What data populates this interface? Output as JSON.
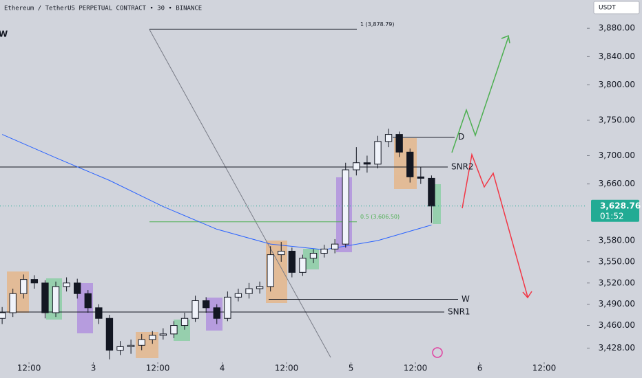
{
  "chart_data": {
    "type": "candlestick",
    "title": "Ethereum / TetherUS PERPETUAL CONTRACT • 30 • BINANCE",
    "currency": "USDT",
    "x": [
      -5,
      -3,
      -1,
      1,
      3,
      5,
      7,
      9,
      11,
      13,
      15,
      17,
      19,
      21,
      23,
      25,
      27,
      29,
      31,
      33,
      35,
      37,
      39,
      41,
      43,
      45,
      47,
      49,
      51,
      53,
      55,
      57,
      59,
      61,
      63,
      65,
      67,
      69,
      71,
      73,
      75
    ],
    "open": [
      3470,
      3478,
      3505,
      3525,
      3520,
      3478,
      3515,
      3520,
      3505,
      3485,
      3470,
      3425,
      3430,
      3432,
      3440,
      3446,
      3448,
      3460,
      3470,
      3495,
      3485,
      3470,
      3500,
      3505,
      3512,
      3515,
      3560,
      3565,
      3535,
      3555,
      3562,
      3568,
      3575,
      3680,
      3690,
      3688,
      3720,
      3730,
      3705,
      3670,
      3668
    ],
    "high": [
      3486,
      3512,
      3532,
      3531,
      3524,
      3522,
      3528,
      3526,
      3510,
      3490,
      3475,
      3438,
      3440,
      3448,
      3452,
      3456,
      3466,
      3478,
      3502,
      3500,
      3490,
      3508,
      3512,
      3520,
      3522,
      3572,
      3578,
      3570,
      3560,
      3568,
      3574,
      3582,
      3690,
      3712,
      3700,
      3728,
      3738,
      3734,
      3710,
      3684,
      3672
    ],
    "low": [
      3462,
      3472,
      3498,
      3512,
      3470,
      3472,
      3508,
      3498,
      3478,
      3462,
      3412,
      3418,
      3420,
      3425,
      3434,
      3440,
      3442,
      3454,
      3465,
      3478,
      3462,
      3466,
      3494,
      3498,
      3505,
      3508,
      3550,
      3528,
      3530,
      3548,
      3556,
      3562,
      3570,
      3672,
      3676,
      3682,
      3712,
      3698,
      3662,
      3660,
      3605
    ],
    "close": [
      3478,
      3505,
      3525,
      3520,
      3478,
      3515,
      3520,
      3505,
      3485,
      3470,
      3425,
      3430,
      3432,
      3440,
      3446,
      3448,
      3460,
      3470,
      3495,
      3485,
      3470,
      3500,
      3505,
      3512,
      3515,
      3560,
      3565,
      3535,
      3555,
      3562,
      3568,
      3575,
      3680,
      3690,
      3688,
      3720,
      3730,
      3705,
      3670,
      3668,
      3628.76
    ],
    "up_color": "#f0f3fa",
    "down_color": "#131722",
    "moving_average": {
      "color": "#2962ff",
      "x": [
        -5,
        5,
        15,
        25,
        35,
        45,
        55,
        65,
        75
      ],
      "values": [
        3730,
        3697,
        3665,
        3628,
        3596,
        3575,
        3567,
        3580,
        3602
      ]
    },
    "xlim": [
      -5.4,
      103.7
    ],
    "ylim": [
      3410,
      3920
    ],
    "xticks": [
      {
        "value": 0,
        "label": "12:00"
      },
      {
        "value": 12,
        "label": "3"
      },
      {
        "value": 24,
        "label": "12:00"
      },
      {
        "value": 36,
        "label": "4"
      },
      {
        "value": 48,
        "label": "12:00"
      },
      {
        "value": 60,
        "label": "5"
      },
      {
        "value": 72,
        "label": "12:00"
      },
      {
        "value": 84,
        "label": "6"
      },
      {
        "value": 96,
        "label": "12:00"
      }
    ],
    "yticks": [
      {
        "value": 3880,
        "label": "3,880.00"
      },
      {
        "value": 3840,
        "label": "3,840.00"
      },
      {
        "value": 3800,
        "label": "3,800.00"
      },
      {
        "value": 3750,
        "label": "3,750.00"
      },
      {
        "value": 3700,
        "label": "3,700.00"
      },
      {
        "value": 3660,
        "label": "3,660.00"
      },
      {
        "value": 3580,
        "label": "3,580.00"
      },
      {
        "value": 3550,
        "label": "3,550.00"
      },
      {
        "value": 3520,
        "label": "3,520.00"
      },
      {
        "value": 3490,
        "label": "3,490.00"
      },
      {
        "value": 3460,
        "label": "3,460.00"
      },
      {
        "value": 3428,
        "label": "3,428.00"
      }
    ],
    "last_price": {
      "value": 3628.76,
      "label": "3,628.76",
      "color": "#22ab94"
    },
    "countdown": "01:52",
    "levels": [
      {
        "label": "SNR2",
        "value": 3684
      },
      {
        "label": "D",
        "value": 3726
      },
      {
        "label": "W",
        "value": 3497
      },
      {
        "label": "SNR1",
        "value": 3479
      }
    ],
    "fib": [
      {
        "label": "1 (3,878.79)",
        "value": 3878.79,
        "color": "#131722"
      },
      {
        "label": "0.5 (3,606.50)",
        "value": 3606.5,
        "color": "#4caf50"
      }
    ],
    "corner_label": "W"
  }
}
